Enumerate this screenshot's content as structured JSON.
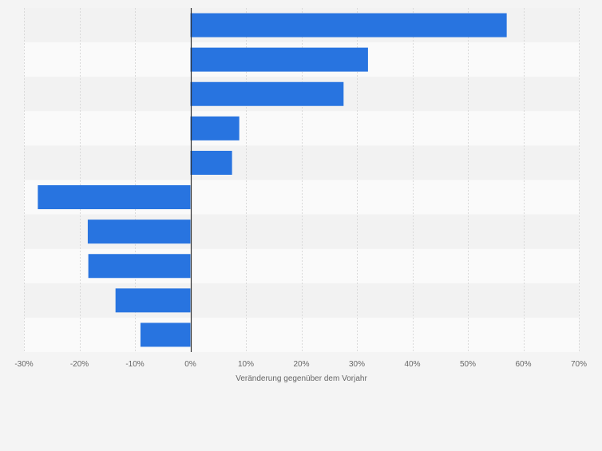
{
  "colors": {
    "background": "#f4f4f4",
    "band_light": "#fafafa",
    "band_dark": "#f2f2f2",
    "grid": "#d9d9d9",
    "bar": "#2874e0",
    "zero_line": "#333333",
    "tick_text": "#666666"
  },
  "chart_data": {
    "type": "bar",
    "orientation": "horizontal",
    "categories": [
      "",
      "",
      "",
      "",
      "",
      "",
      "",
      "",
      "",
      ""
    ],
    "values": [
      57,
      32,
      27.6,
      8.8,
      7.5,
      -27.5,
      -18.5,
      -18.4,
      -13.5,
      -9
    ],
    "xlim": [
      -30,
      70
    ],
    "xticks": [
      -30,
      -20,
      -10,
      0,
      10,
      20,
      30,
      40,
      50,
      60,
      70
    ],
    "tick_suffix": "%",
    "xlabel": "Veränderung gegenüber dem Vorjahr",
    "ylabel": "",
    "title": "",
    "grid": true,
    "legend": "none"
  }
}
